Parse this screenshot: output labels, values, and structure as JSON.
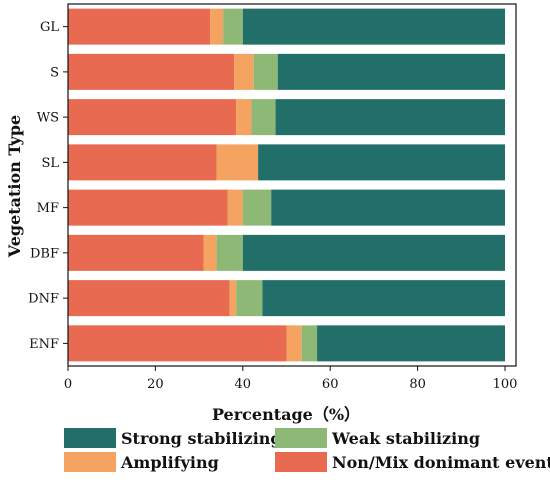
{
  "chart_data": {
    "type": "bar",
    "orientation": "horizontal",
    "stacked": true,
    "title": "",
    "xlabel": "Percentage（%）",
    "ylabel": "Vegetation Type",
    "xlim": [
      0,
      100
    ],
    "xticks": [
      0,
      20,
      40,
      60,
      80,
      100
    ],
    "grid": false,
    "legend_position": "bottom",
    "categories": [
      "GL",
      "S",
      "WS",
      "SL",
      "MF",
      "DBF",
      "DNF",
      "ENF"
    ],
    "series": [
      {
        "name": "Non/Mix donimant event",
        "color": "#E86A50",
        "values": [
          32.5,
          38.0,
          38.5,
          34.0,
          36.5,
          31.0,
          37.0,
          50.0
        ]
      },
      {
        "name": "Amplifying",
        "color": "#F4A460",
        "values": [
          3.0,
          4.5,
          3.5,
          9.5,
          3.5,
          3.0,
          1.5,
          3.5
        ]
      },
      {
        "name": "Weak stabilizing",
        "color": "#8DB876",
        "values": [
          4.5,
          5.5,
          5.5,
          0.0,
          6.5,
          6.0,
          6.0,
          3.5
        ]
      },
      {
        "name": "Strong stabilizing",
        "color": "#226E69",
        "values": [
          60.0,
          52.0,
          52.5,
          56.5,
          53.5,
          60.0,
          55.5,
          43.0
        ]
      }
    ],
    "legend_order": [
      "Strong stabilizing",
      "Weak stabilizing",
      "Amplifying",
      "Non/Mix donimant event"
    ]
  }
}
